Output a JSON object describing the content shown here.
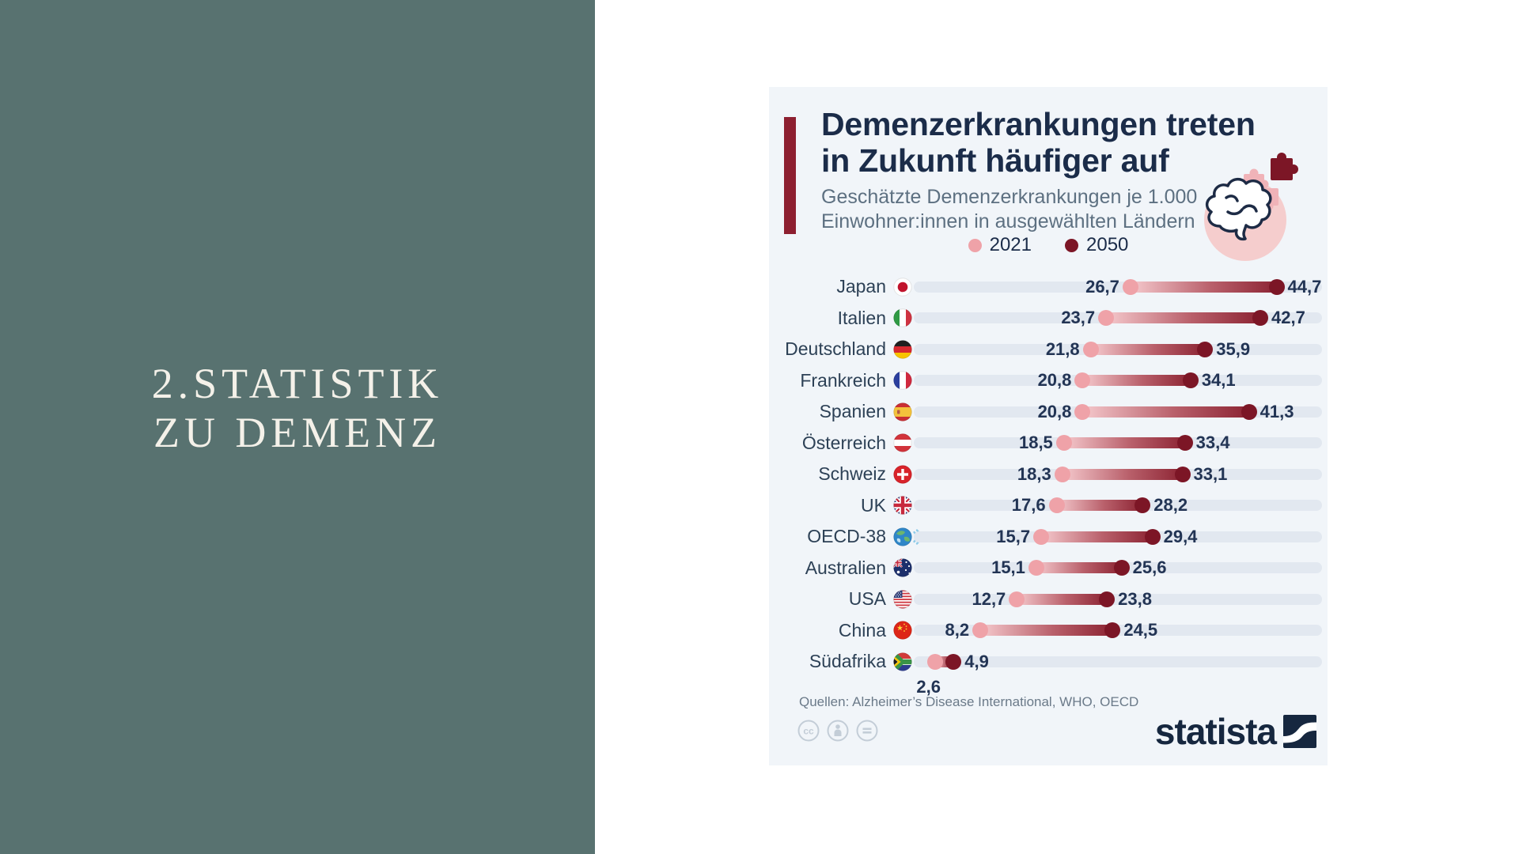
{
  "slide": {
    "section_title_lines": [
      "2.STATISTIK",
      "ZU DEMENZ"
    ]
  },
  "infographic": {
    "title_lines": [
      "Demenzerkrankungen treten",
      "in Zukunft häufiger auf"
    ],
    "subtitle_lines": [
      "Geschätzte Demenzerkrankungen je 1.000",
      "Einwohner:innen in ausgewählten Ländern"
    ],
    "legend": [
      {
        "label": "2021",
        "color": "#efa2a8"
      },
      {
        "label": "2050",
        "color": "#7c1626"
      }
    ],
    "source_line": "Quellen: Alzheimer’s Disease International, WHO, OECD",
    "brand": "statista",
    "license_icons": [
      "cc-logo-icon",
      "cc-attribution-icon",
      "cc-no-derivatives-icon"
    ],
    "colors": {
      "panel_teal": "#587270",
      "card_background": "#f1f5f9",
      "accent_maroon": "#8d1f30",
      "title_navy": "#1b2c49",
      "track_gray": "#e2e8f0",
      "pink_2021": "#efa2a8",
      "maroon_2050": "#7c1626"
    }
  },
  "chart_data": {
    "type": "bar",
    "subtype": "dumbbell-range",
    "title": "Demenzerkrankungen treten in Zukunft häufiger auf",
    "subtitle": "Geschätzte Demenzerkrankungen je 1.000 Einwohner:innen in ausgewählten Ländern",
    "legend_position": "top-center",
    "grid": false,
    "xlim": [
      0,
      50.3
    ],
    "categories": [
      "Japan",
      "Italien",
      "Deutschland",
      "Frankreich",
      "Spanien",
      "Österreich",
      "Schweiz",
      "UK",
      "OECD-38",
      "Australien",
      "USA",
      "China",
      "Südafrika"
    ],
    "series": [
      {
        "name": "2021",
        "values": [
          26.7,
          23.7,
          21.8,
          20.8,
          20.8,
          18.5,
          18.3,
          17.6,
          15.7,
          15.1,
          12.7,
          8.2,
          2.6
        ]
      },
      {
        "name": "2050",
        "values": [
          44.7,
          42.7,
          35.9,
          34.1,
          41.3,
          33.4,
          33.1,
          28.2,
          29.4,
          25.6,
          23.8,
          24.5,
          4.9
        ]
      }
    ],
    "rows": [
      {
        "country": "Japan",
        "flag": "japan",
        "v2021": 26.7,
        "v2050": 44.7,
        "label2021": "26,7",
        "label2050": "44,7"
      },
      {
        "country": "Italien",
        "flag": "italy",
        "v2021": 23.7,
        "v2050": 42.7,
        "label2021": "23,7",
        "label2050": "42,7"
      },
      {
        "country": "Deutschland",
        "flag": "germany",
        "v2021": 21.8,
        "v2050": 35.9,
        "label2021": "21,8",
        "label2050": "35,9"
      },
      {
        "country": "Frankreich",
        "flag": "france",
        "v2021": 20.8,
        "v2050": 34.1,
        "label2021": "20,8",
        "label2050": "34,1"
      },
      {
        "country": "Spanien",
        "flag": "spain",
        "v2021": 20.8,
        "v2050": 41.3,
        "label2021": "20,8",
        "label2050": "41,3"
      },
      {
        "country": "Österreich",
        "flag": "austria",
        "v2021": 18.5,
        "v2050": 33.4,
        "label2021": "18,5",
        "label2050": "33,4"
      },
      {
        "country": "Schweiz",
        "flag": "switzerland",
        "v2021": 18.3,
        "v2050": 33.1,
        "label2021": "18,3",
        "label2050": "33,1"
      },
      {
        "country": "UK",
        "flag": "uk",
        "v2021": 17.6,
        "v2050": 28.2,
        "label2021": "17,6",
        "label2050": "28,2"
      },
      {
        "country": "OECD-38",
        "flag": "oecd",
        "v2021": 15.7,
        "v2050": 29.4,
        "label2021": "15,7",
        "label2050": "29,4"
      },
      {
        "country": "Australien",
        "flag": "australia",
        "v2021": 15.1,
        "v2050": 25.6,
        "label2021": "15,1",
        "label2050": "25,6"
      },
      {
        "country": "USA",
        "flag": "usa",
        "v2021": 12.7,
        "v2050": 23.8,
        "label2021": "12,7",
        "label2050": "23,8"
      },
      {
        "country": "China",
        "flag": "china",
        "v2021": 8.2,
        "v2050": 24.5,
        "label2021": "8,2",
        "label2050": "24,5"
      },
      {
        "country": "Südafrika",
        "flag": "southafrica",
        "v2021": 2.6,
        "v2050": 4.9,
        "label2021": "2,6",
        "label2050": "4,9",
        "label2021_below": true
      }
    ]
  }
}
